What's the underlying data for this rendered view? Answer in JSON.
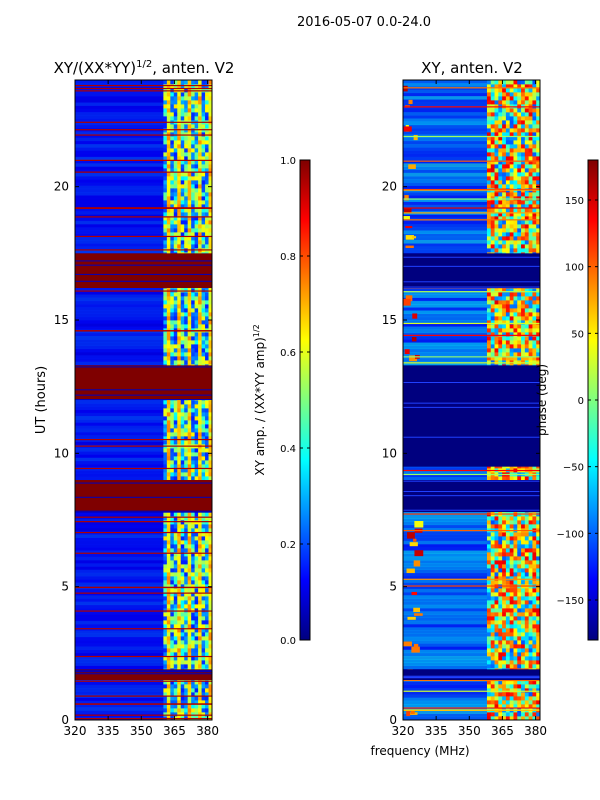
{
  "suptitle": "2016-05-07 0.0-24.0",
  "colors": {
    "jet": [
      "#00007f",
      "#0000ff",
      "#007fff",
      "#00ffff",
      "#7fff7f",
      "#ffff00",
      "#ff7f00",
      "#ff0000",
      "#7f0000"
    ]
  },
  "chart_data": [
    {
      "type": "heatmap",
      "title_main": "XY/(XX*YY)",
      "title_sup": "1/2",
      "title_rest": ", anten. V2",
      "xlabel": "",
      "ylabel": "UT (hours)",
      "xlim": [
        320,
        382
      ],
      "ylim": [
        0,
        24
      ],
      "xticks": [
        "320",
        "335",
        "350",
        "365",
        "380"
      ],
      "xtick_values": [
        320,
        335,
        350,
        365,
        380
      ],
      "yticks": [
        "0",
        "5",
        "10",
        "15",
        "20"
      ],
      "ytick_values": [
        0,
        5,
        10,
        15,
        20
      ],
      "active_band_mhz": [
        360,
        382
      ],
      "saturated_hour_ranges": [
        [
          1.5,
          1.9
        ],
        [
          7.8,
          9.0
        ],
        [
          12.0,
          13.3
        ],
        [
          16.2,
          17.5
        ]
      ],
      "colorbar": {
        "label": "XY amp. / (XX*YY amp)",
        "label_sup": "1/2",
        "range": [
          0.0,
          1.0
        ],
        "ticks": [
          "0.0",
          "0.2",
          "0.4",
          "0.6",
          "0.8",
          "1.0"
        ],
        "tick_values": [
          0.0,
          0.2,
          0.4,
          0.6,
          0.8,
          1.0
        ]
      }
    },
    {
      "type": "heatmap",
      "title": "XY, anten. V2",
      "xlabel": "frequency (MHz)",
      "ylabel": "",
      "xlim": [
        320,
        382
      ],
      "ylim": [
        0,
        24
      ],
      "xticks": [
        "320",
        "335",
        "350",
        "365",
        "380"
      ],
      "xtick_values": [
        320,
        335,
        350,
        365,
        380
      ],
      "yticks": [
        "0",
        "5",
        "10",
        "15",
        "20"
      ],
      "ytick_values": [
        0,
        5,
        10,
        15,
        20
      ],
      "active_band_mhz": [
        358,
        382
      ],
      "blank_hour_ranges": [
        [
          1.5,
          1.9
        ],
        [
          7.8,
          9.0
        ],
        [
          9.5,
          13.3
        ],
        [
          16.2,
          17.5
        ]
      ],
      "colorbar": {
        "label": "phase (deg)",
        "range": [
          -180,
          180
        ],
        "ticks": [
          "−150",
          "−100",
          "−50",
          "0",
          "50",
          "100",
          "150"
        ],
        "tick_values": [
          -150,
          -100,
          -50,
          0,
          50,
          100,
          150
        ]
      }
    }
  ]
}
